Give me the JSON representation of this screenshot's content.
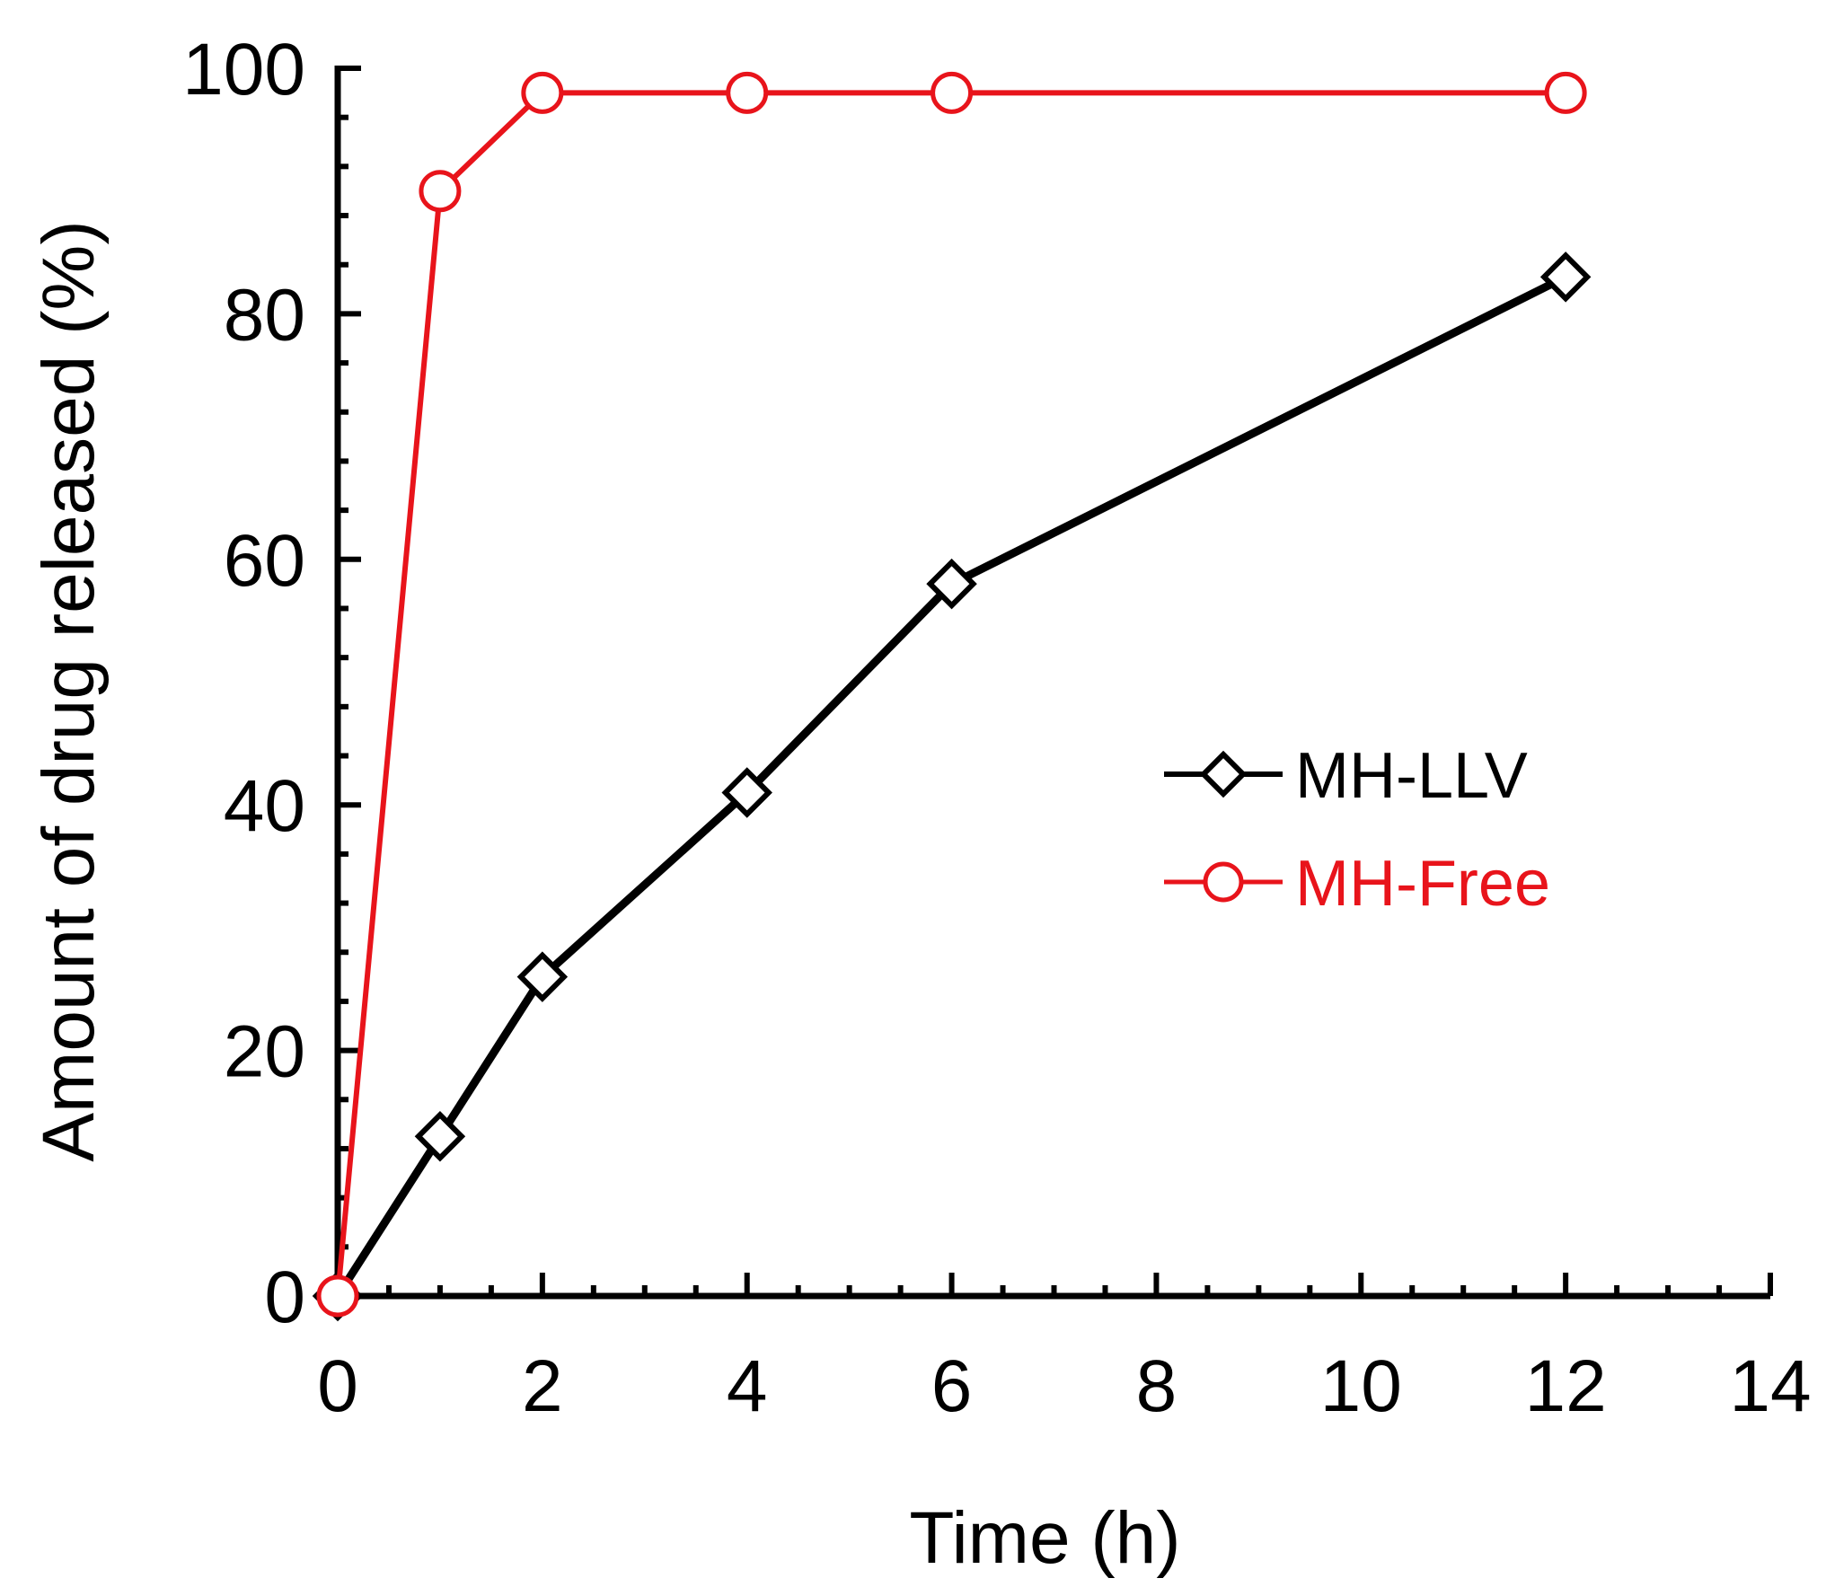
{
  "chart_data": {
    "type": "line",
    "title": "",
    "xlabel": "Time (h)",
    "ylabel": "Amount of drug released (%)",
    "xlim": [
      0,
      14
    ],
    "ylim": [
      0,
      100
    ],
    "x_ticks": [
      "0",
      "2",
      "4",
      "6",
      "8",
      "10",
      "12",
      "14"
    ],
    "y_ticks": [
      "0",
      "20",
      "40",
      "60",
      "80",
      "100"
    ],
    "x_minor_step": 0.5,
    "y_minor_step": 4,
    "grid": false,
    "legend_position": "center-right",
    "series": [
      {
        "name": "MH-LLV",
        "color": "#000000",
        "marker": "diamond",
        "x": [
          0,
          1,
          2,
          4,
          6,
          12
        ],
        "values": [
          0,
          13,
          26,
          41,
          58,
          83
        ]
      },
      {
        "name": "MH-Free",
        "color": "#e8141b",
        "marker": "circle",
        "x": [
          0,
          1,
          2,
          4,
          6,
          12
        ],
        "values": [
          0,
          90,
          98,
          98,
          98,
          98
        ]
      }
    ]
  }
}
